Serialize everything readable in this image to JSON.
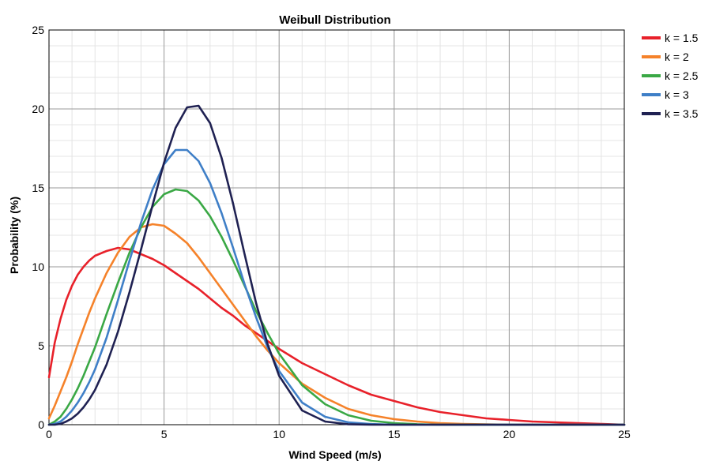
{
  "chart_data": {
    "type": "line",
    "title": "Weibull Distribution",
    "xlabel": "Wind Speed (m/s)",
    "ylabel": "Probability (%)",
    "xlim": [
      0,
      25
    ],
    "ylim": [
      0,
      25
    ],
    "x_ticks": [
      "0",
      "5",
      "10",
      "15",
      "20",
      "25"
    ],
    "y_ticks": [
      "0",
      "5",
      "10",
      "15",
      "20",
      "25"
    ],
    "grid": true,
    "legend_position": "right",
    "x": [
      0,
      0.25,
      0.5,
      0.75,
      1,
      1.25,
      1.5,
      1.75,
      2,
      2.5,
      3,
      3.5,
      4,
      4.5,
      5,
      5.5,
      6,
      6.5,
      7,
      7.5,
      8,
      8.5,
      9,
      9.5,
      10,
      11,
      12,
      13,
      14,
      15,
      16,
      17,
      18,
      19,
      20,
      21,
      22,
      23,
      24,
      25
    ],
    "series": [
      {
        "name": "k = 1.5",
        "color": "#e8212a",
        "values": [
          3.0,
          5.2,
          6.7,
          7.9,
          8.8,
          9.5,
          10.0,
          10.4,
          10.7,
          11.0,
          11.2,
          11.1,
          10.8,
          10.5,
          10.1,
          9.6,
          9.1,
          8.6,
          8.0,
          7.4,
          6.9,
          6.3,
          5.8,
          5.3,
          4.8,
          3.9,
          3.2,
          2.5,
          1.9,
          1.5,
          1.1,
          0.8,
          0.6,
          0.4,
          0.3,
          0.2,
          0.15,
          0.1,
          0.05,
          0.0
        ]
      },
      {
        "name": "k = 2",
        "color": "#f5822a",
        "values": [
          0.4,
          1.2,
          2.1,
          3.0,
          4.0,
          5.1,
          6.1,
          7.1,
          8.0,
          9.6,
          10.9,
          11.9,
          12.5,
          12.7,
          12.6,
          12.1,
          11.5,
          10.6,
          9.6,
          8.6,
          7.6,
          6.6,
          5.6,
          4.7,
          3.9,
          2.6,
          1.7,
          1.0,
          0.6,
          0.35,
          0.2,
          0.1,
          0.05,
          0.02,
          0.0,
          0.0,
          0.0,
          0.0,
          0.0,
          0.0
        ]
      },
      {
        "name": "k = 2.5",
        "color": "#3aa845",
        "values": [
          0.0,
          0.2,
          0.5,
          1.0,
          1.6,
          2.3,
          3.1,
          4.0,
          4.9,
          7.0,
          9.0,
          10.9,
          12.5,
          13.8,
          14.6,
          14.9,
          14.8,
          14.2,
          13.2,
          11.9,
          10.4,
          8.8,
          7.2,
          5.8,
          4.5,
          2.5,
          1.3,
          0.6,
          0.25,
          0.1,
          0.03,
          0.0,
          0.0,
          0.0,
          0.0,
          0.0,
          0.0,
          0.0,
          0.0,
          0.0
        ]
      },
      {
        "name": "k = 3",
        "color": "#3f7fc7",
        "values": [
          0.0,
          0.05,
          0.2,
          0.5,
          0.9,
          1.4,
          2.0,
          2.7,
          3.5,
          5.5,
          7.9,
          10.4,
          12.8,
          14.9,
          16.5,
          17.4,
          17.4,
          16.7,
          15.3,
          13.4,
          11.2,
          8.9,
          6.8,
          4.9,
          3.4,
          1.4,
          0.5,
          0.15,
          0.04,
          0.0,
          0.0,
          0.0,
          0.0,
          0.0,
          0.0,
          0.0,
          0.0,
          0.0,
          0.0,
          0.0
        ]
      },
      {
        "name": "k = 3.5",
        "color": "#1f2152",
        "values": [
          0.0,
          0.0,
          0.05,
          0.2,
          0.4,
          0.7,
          1.1,
          1.6,
          2.2,
          3.8,
          5.9,
          8.4,
          11.1,
          13.9,
          16.6,
          18.8,
          20.1,
          20.2,
          19.1,
          16.9,
          14.0,
          10.8,
          7.7,
          5.1,
          3.1,
          0.9,
          0.2,
          0.03,
          0.0,
          0.0,
          0.0,
          0.0,
          0.0,
          0.0,
          0.0,
          0.0,
          0.0,
          0.0,
          0.0,
          0.0
        ]
      }
    ]
  }
}
